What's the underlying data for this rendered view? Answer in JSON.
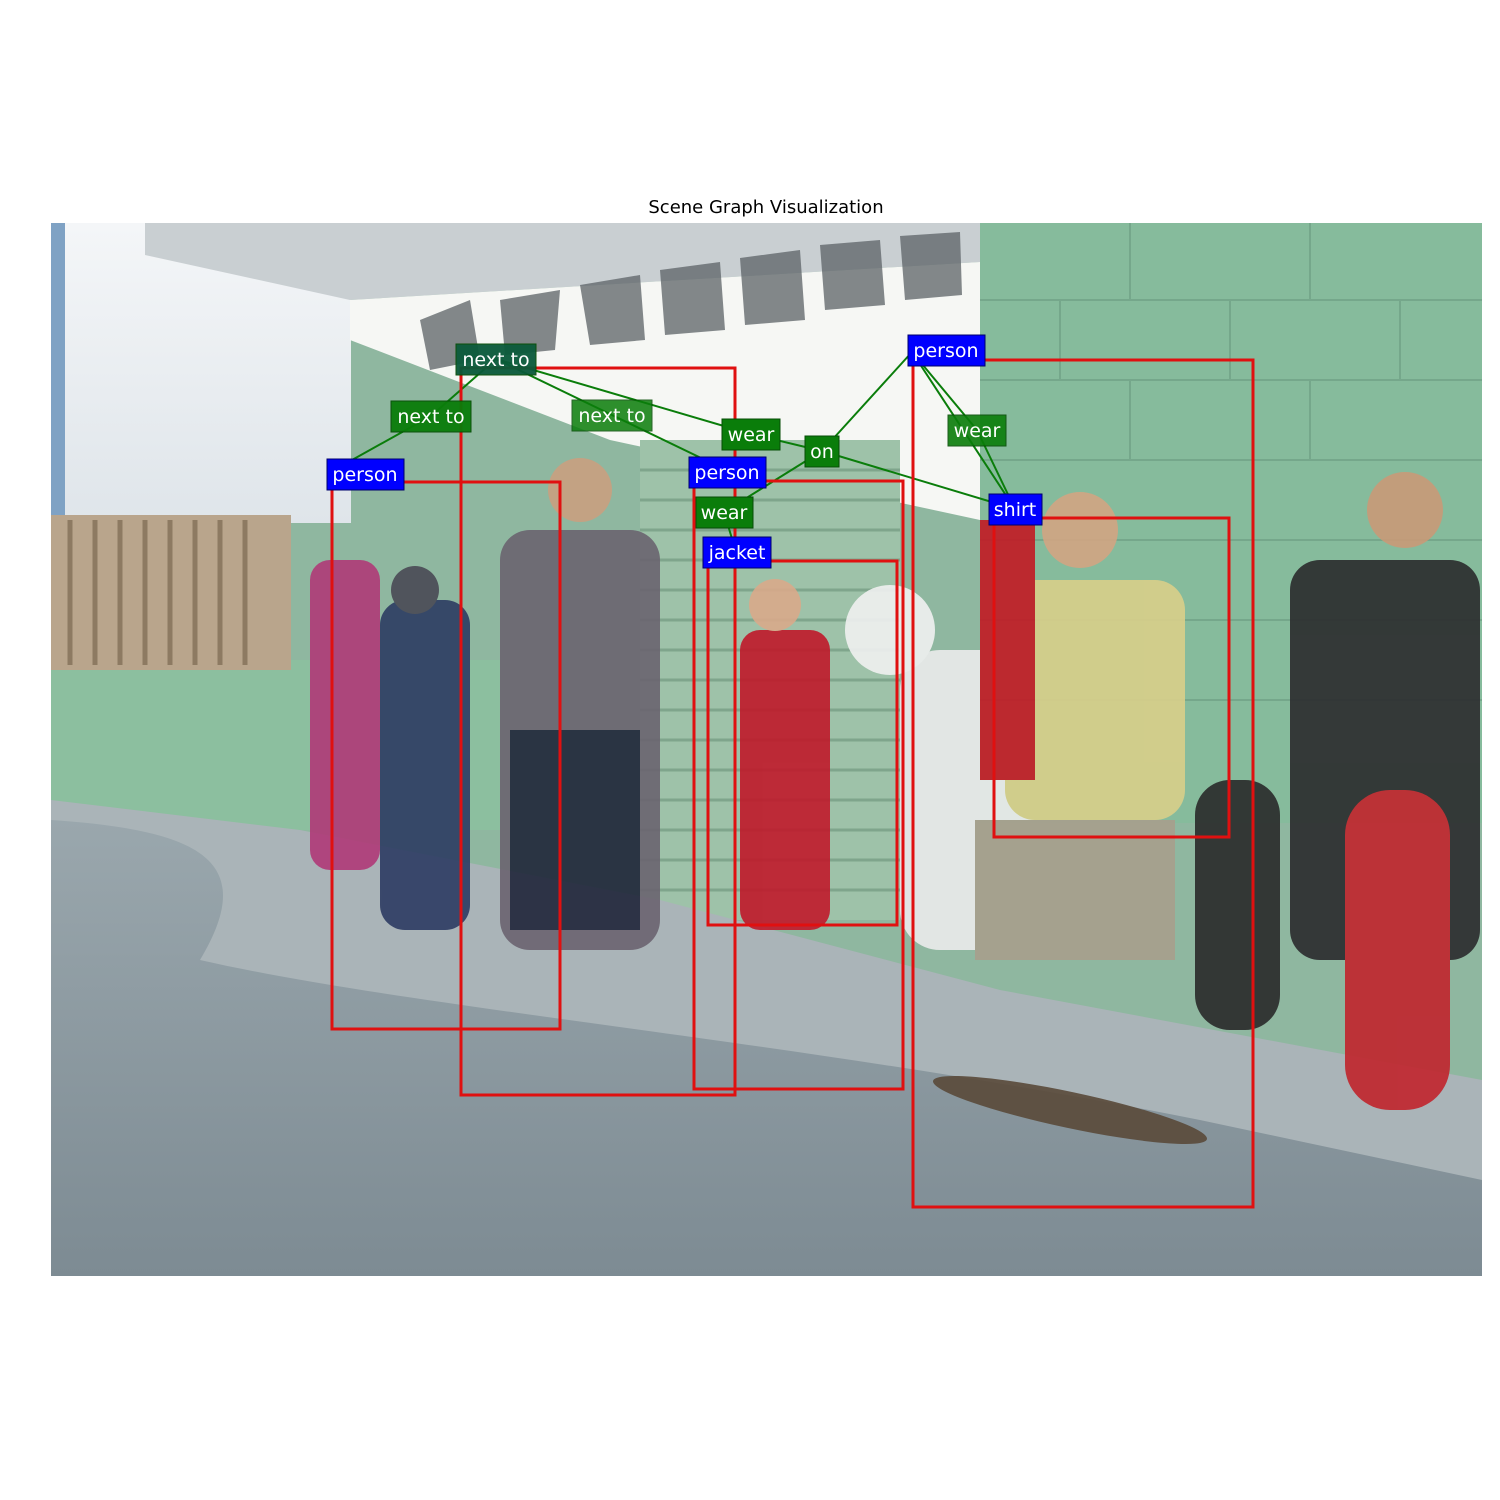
{
  "title": "Scene Graph Visualization",
  "colors": {
    "box": "#e01010",
    "object_label_bg": "#0000ff",
    "relation_label_bg": "#0a7d0a",
    "edge": "#0a7d0a"
  },
  "objects": [
    {
      "id": "o1",
      "label": "person"
    },
    {
      "id": "o2",
      "label": "person"
    },
    {
      "id": "o3",
      "label": "person"
    },
    {
      "id": "o4",
      "label": "person"
    },
    {
      "id": "o5",
      "label": "jacket"
    },
    {
      "id": "o6",
      "label": "shirt"
    }
  ],
  "relations": [
    {
      "id": "r1",
      "label": "next to"
    },
    {
      "id": "r2",
      "label": "next to"
    },
    {
      "id": "r3",
      "label": "next to"
    },
    {
      "id": "r4",
      "label": "wear"
    },
    {
      "id": "r5",
      "label": "on"
    },
    {
      "id": "r6",
      "label": "wear"
    },
    {
      "id": "r7",
      "label": "wear"
    }
  ]
}
